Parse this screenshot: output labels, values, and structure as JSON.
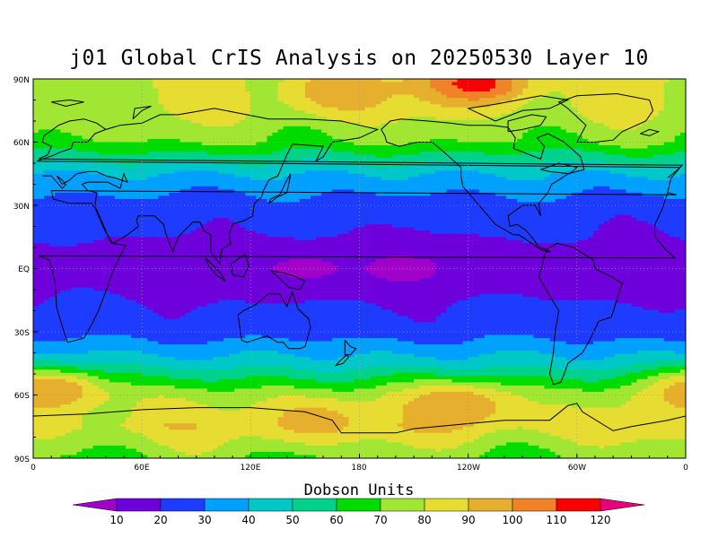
{
  "title": "j01 Global CrIS Analysis on 20250530 Layer 10",
  "axes": {
    "lat_labels": [
      "90N",
      "60N",
      "30N",
      "EQ",
      "30S",
      "60S",
      "90S"
    ],
    "lon_labels": [
      "0",
      "60E",
      "120E",
      "180",
      "120W",
      "60W",
      "0"
    ]
  },
  "colorbar": {
    "title": "Dobson Units",
    "labels": [
      "10",
      "20",
      "30",
      "40",
      "50",
      "60",
      "70",
      "80",
      "90",
      "100",
      "110",
      "120"
    ],
    "colors": [
      "#a000c8",
      "#6e00dc",
      "#1e3cff",
      "#00a0ff",
      "#00c8c8",
      "#00d28c",
      "#00dc00",
      "#a0e632",
      "#e6dc32",
      "#e6af2d",
      "#f08228",
      "#fa0000",
      "#e6007a"
    ]
  },
  "chart_data": {
    "type": "heatmap",
    "title": "j01 Global CrIS Analysis on 20250530 Layer 10",
    "x_range": [
      0,
      360
    ],
    "y_range": [
      -90,
      90
    ],
    "units": "Dobson Units",
    "scale": [
      10,
      120
    ],
    "zonal_profile": [
      {
        "lat": 90,
        "value": 80
      },
      {
        "lat": 75,
        "value": 80
      },
      {
        "lat": 60,
        "value": 70
      },
      {
        "lat": 45,
        "value": 40
      },
      {
        "lat": 30,
        "value": 25
      },
      {
        "lat": 0,
        "value": 15
      },
      {
        "lat": -30,
        "value": 25
      },
      {
        "lat": -45,
        "value": 45
      },
      {
        "lat": -60,
        "value": 75
      },
      {
        "lat": -75,
        "value": 85
      },
      {
        "lat": -90,
        "value": 70
      }
    ],
    "features": [
      {
        "lon": 150,
        "lat": 0,
        "value": 8
      },
      {
        "lon": 205,
        "lat": 0,
        "value": 8
      },
      {
        "lon": 10,
        "lat": -58,
        "value": 100
      },
      {
        "lon": 235,
        "lat": -65,
        "value": 100
      },
      {
        "lon": 155,
        "lat": -72,
        "value": 95
      },
      {
        "lon": 170,
        "lat": 84,
        "value": 100
      },
      {
        "lon": 245,
        "lat": 88,
        "value": 115
      }
    ]
  }
}
